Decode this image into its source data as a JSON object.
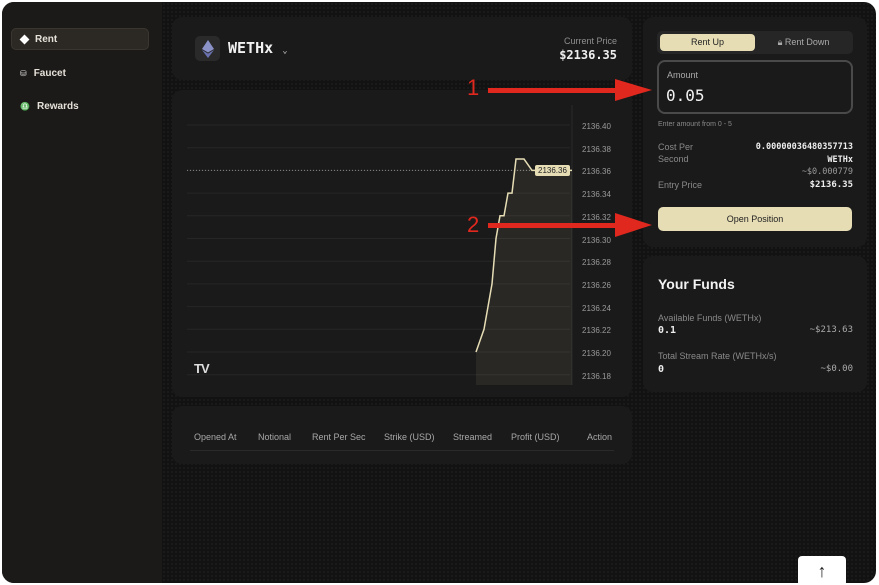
{
  "sidebar": {
    "items": [
      {
        "label": "Rent",
        "icon": "diamond-icon",
        "active": true
      },
      {
        "label": "Faucet",
        "icon": "faucet-icon"
      },
      {
        "label": "Rewards",
        "icon": "bell-icon"
      }
    ]
  },
  "header": {
    "token": "WETHx",
    "current_price_label": "Current Price",
    "current_price": "$2136.35"
  },
  "chart": {
    "y_ticks": [
      "2136.40",
      "2136.38",
      "2136.36",
      "2136.34",
      "2136.32",
      "2136.30",
      "2136.28",
      "2136.26",
      "2136.24",
      "2136.22",
      "2136.20",
      "2136.18"
    ],
    "current_price_tag": "2136.36",
    "logo": "TV",
    "line_color": "#e6ddb5"
  },
  "chart_data": {
    "type": "area",
    "ylim": [
      2136.18,
      2136.41
    ],
    "current_price": 2136.36,
    "values": [
      2136.2,
      2136.21,
      2136.22,
      2136.24,
      2136.26,
      2136.3,
      2136.32,
      2136.32,
      2136.34,
      2136.34,
      2136.37,
      2136.37,
      2136.37,
      2136.365,
      2136.36,
      2136.36,
      2136.36,
      2136.36,
      2136.36,
      2136.36,
      2136.36,
      2136.36,
      2136.36,
      2136.36,
      2136.36
    ]
  },
  "table": {
    "columns": [
      "Opened At",
      "Notional",
      "Rent Per Sec",
      "Strike (USD)",
      "Streamed",
      "Profit (USD)",
      "Action"
    ]
  },
  "trade": {
    "tab_up": "Rent Up",
    "tab_down": "Rent Down",
    "amount_label": "Amount",
    "amount_value": "0.05",
    "hint": "Enter amount from 0 - 5",
    "cost_label_1": "Cost Per",
    "cost_label_2": "Second",
    "cost_value": "0.00000036480357713",
    "cost_unit": "WETHx",
    "cost_usd": "~$0.000779",
    "entry_label": "Entry Price",
    "entry_value": "$2136.35",
    "open_button": "Open Position",
    "accent": "#e6ddb5"
  },
  "funds": {
    "title": "Your Funds",
    "available_label": "Available Funds (WETHx)",
    "available_value": "0.1",
    "available_usd": "~$213.63",
    "stream_label": "Total Stream Rate (WETHx/s)",
    "stream_value": "0",
    "stream_usd": "~$0.00"
  },
  "annotations": {
    "one": "1",
    "two": "2"
  }
}
